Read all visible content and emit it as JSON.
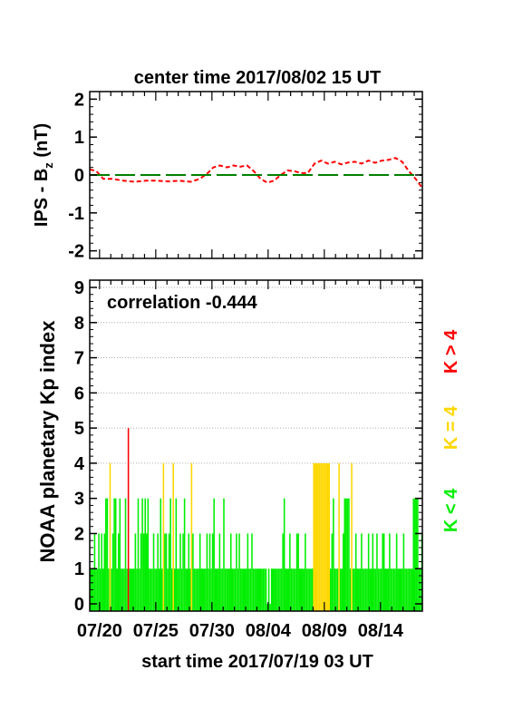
{
  "chart_data": [
    {
      "type": "line",
      "title": "center time 2017/08/02 15 UT",
      "ylabel_main": "IPS - B",
      "ylabel_sub": "z",
      "ylabel_unit": "(nT)",
      "ylim": [
        -2.2,
        2.2
      ],
      "yticks": [
        "2",
        "1",
        "0",
        "-1",
        "-2"
      ],
      "ytick_values": [
        2,
        1,
        0,
        -1,
        -2
      ],
      "xlim_days": [
        0,
        29.6
      ],
      "series": [
        {
          "color": "#ff0000",
          "style": "dashed",
          "x_days": [
            0,
            0.6,
            1.2,
            2.0,
            3.0,
            4.0,
            5.0,
            6.0,
            7.0,
            8.0,
            9.0,
            9.8,
            10.5,
            11.0,
            11.6,
            12.2,
            12.8,
            13.4,
            14.0,
            14.6,
            15.2,
            15.8,
            16.4,
            17.0,
            17.6,
            18.2,
            18.8,
            19.4,
            20.0,
            20.6,
            21.2,
            21.8,
            22.4,
            23.0,
            23.6,
            24.2,
            24.8,
            25.4,
            26.0,
            26.6,
            27.2,
            27.8,
            28.4,
            29.0,
            29.6
          ],
          "values": [
            0.15,
            0.1,
            -0.1,
            -0.1,
            -0.15,
            -0.18,
            -0.15,
            -0.15,
            -0.17,
            -0.15,
            -0.18,
            -0.1,
            0.05,
            0.2,
            0.25,
            0.2,
            0.25,
            0.22,
            0.25,
            0.1,
            -0.1,
            -0.2,
            -0.15,
            0.0,
            0.12,
            0.1,
            0.05,
            0.05,
            0.3,
            0.38,
            0.3,
            0.35,
            0.28,
            0.33,
            0.35,
            0.3,
            0.38,
            0.32,
            0.38,
            0.4,
            0.45,
            0.35,
            0.1,
            -0.1,
            -0.35
          ]
        },
        {
          "color": "#008000",
          "style": "dashed",
          "x_days": [
            0,
            29.6
          ],
          "values": [
            0,
            0
          ]
        }
      ]
    },
    {
      "type": "bar",
      "annotation": "correlation -0.444",
      "ylabel": "NOAA planetary Kp index",
      "ylim": [
        0,
        9
      ],
      "yticks": [
        "9",
        "8",
        "7",
        "6",
        "5",
        "4",
        "3",
        "2",
        "1",
        "0"
      ],
      "ytick_values": [
        9,
        8,
        7,
        6,
        5,
        4,
        3,
        2,
        1,
        0
      ],
      "grid_y": [
        4,
        5,
        6,
        7,
        8,
        9
      ],
      "xlim_days": [
        0,
        29.6
      ],
      "xticks": [
        "07/20",
        "07/25",
        "07/30",
        "08/04",
        "08/09",
        "08/14"
      ],
      "xtick_days": [
        0.875,
        5.875,
        10.875,
        15.875,
        20.875,
        25.875
      ],
      "xlabel": "start time 2017/07/19 03 UT",
      "legend": [
        {
          "label": "K < 4",
          "color": "#00ee00"
        },
        {
          "label": "K = 4",
          "color": "#ffd700"
        },
        {
          "label": "K > 4",
          "color": "#ff0000"
        }
      ],
      "colors": {
        "low": "#00ee00",
        "four": "#ffd700",
        "high": "#ff0000"
      },
      "interval_days": 0.125,
      "values": [
        1,
        1,
        1,
        2,
        1,
        1,
        2,
        1,
        2,
        1,
        2,
        3,
        3,
        1,
        4,
        1,
        2,
        3,
        3,
        1,
        2,
        3,
        1,
        1,
        1,
        3,
        1,
        5,
        1,
        1,
        1,
        1,
        2,
        1,
        3,
        1,
        2,
        3,
        2,
        3,
        2,
        3,
        1,
        1,
        1,
        2,
        1,
        1,
        2,
        1,
        3,
        1,
        4,
        2,
        2,
        1,
        2,
        3,
        1,
        4,
        1,
        3,
        1,
        1,
        2,
        1,
        2,
        3,
        1,
        1,
        2,
        1,
        4,
        2,
        1,
        1,
        1,
        1,
        2,
        1,
        1,
        1,
        1,
        2,
        1,
        2,
        1,
        2,
        3,
        1,
        1,
        1,
        2,
        1,
        1,
        3,
        1,
        1,
        1,
        1,
        2,
        1,
        1,
        1,
        2,
        1,
        2,
        1,
        1,
        1,
        1,
        1,
        2,
        1,
        1,
        2,
        1,
        1,
        1,
        1,
        1,
        1,
        1,
        1,
        1,
        1,
        0,
        1,
        0,
        1,
        1,
        1,
        1,
        1,
        1,
        1,
        1,
        2,
        3,
        1,
        1,
        1,
        2,
        1,
        1,
        1,
        1,
        2,
        2,
        1,
        1,
        1,
        1,
        2,
        1,
        1,
        1,
        1,
        1,
        4,
        4,
        4,
        4,
        4,
        4,
        4,
        4,
        4,
        4,
        4,
        4,
        1,
        2,
        3,
        1,
        1,
        1,
        4,
        1,
        1,
        2,
        3,
        3,
        3,
        3,
        1,
        4,
        1,
        1,
        2,
        1,
        1,
        1,
        2,
        1,
        1,
        1,
        1,
        2,
        1,
        1,
        2,
        1,
        1,
        2,
        1,
        1,
        1,
        2,
        2,
        1,
        1,
        1,
        2,
        1,
        1,
        1,
        1,
        2,
        1,
        1,
        1,
        1,
        2,
        1,
        1,
        1,
        1,
        1,
        1,
        3,
        3,
        3,
        3,
        1,
        1,
        2,
        3,
        1,
        1,
        1,
        1,
        2,
        1,
        1,
        1,
        1,
        1,
        1,
        2,
        1,
        1,
        2,
        1,
        1,
        1,
        2,
        1,
        1,
        1,
        1,
        1,
        1,
        2,
        2,
        2,
        1
      ]
    }
  ]
}
